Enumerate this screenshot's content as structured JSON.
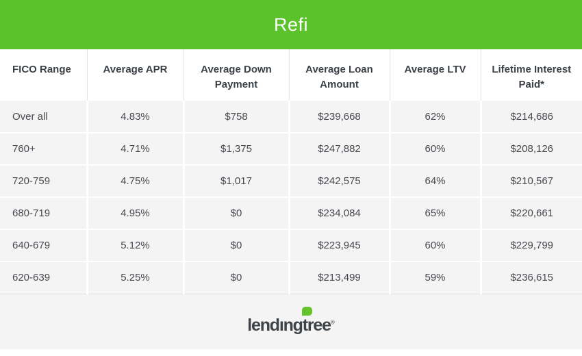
{
  "banner": {
    "title": "Refi"
  },
  "chart_data": {
    "type": "table",
    "title": "Refi",
    "columns": [
      "FICO Range",
      "Average APR",
      "Average Down Payment",
      "Average Loan Amount",
      "Average LTV",
      "Lifetime Interest Paid*"
    ],
    "rows": [
      [
        "Over all",
        "4.83%",
        "$758",
        "$239,668",
        "62%",
        "$214,686"
      ],
      [
        "760+",
        "4.71%",
        "$1,375",
        "$247,882",
        "60%",
        "$208,126"
      ],
      [
        "720-759",
        "4.75%",
        "$1,017",
        "$242,575",
        "64%",
        "$210,567"
      ],
      [
        "680-719",
        "4.95%",
        "$0",
        "$234,084",
        "65%",
        "$220,661"
      ],
      [
        "640-679",
        "5.12%",
        "$0",
        "$223,945",
        "60%",
        "$229,799"
      ],
      [
        "620-639",
        "5.25%",
        "$0",
        "$213,499",
        "59%",
        "$236,615"
      ]
    ]
  },
  "footer": {
    "logo": {
      "part1": "lendıng",
      "part2": "t",
      "part3": "ree",
      "registered": "®"
    }
  },
  "colors": {
    "banner_green": "#5cc22b",
    "leaf_green": "#65c32c",
    "row_background": "#f4f4f5",
    "header_text": "#3c4147",
    "cell_text": "#46494e",
    "logo_text": "#3e4347"
  }
}
